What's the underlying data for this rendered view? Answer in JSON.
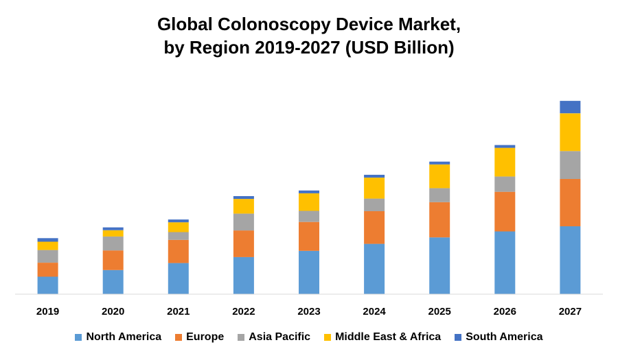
{
  "chart_data": {
    "type": "bar",
    "stacked": true,
    "title_line1": "Global Colonoscopy Device Market,",
    "title_line2": "by Region 2019-2027 (USD Billion)",
    "xlabel": "",
    "ylabel": "",
    "ylim": [
      0,
      100
    ],
    "grid": false,
    "legend_position": "bottom",
    "categories": [
      "2019",
      "2020",
      "2021",
      "2022",
      "2023",
      "2024",
      "2025",
      "2026",
      "2027"
    ],
    "series": [
      {
        "name": "North America",
        "color": "#5B9BD5",
        "values": [
          9.3,
          12.8,
          16.5,
          19.7,
          23.0,
          26.7,
          30.1,
          33.3,
          36.0
        ]
      },
      {
        "name": "Europe",
        "color": "#ED7D31",
        "values": [
          7.4,
          10.4,
          12.3,
          14.1,
          15.3,
          17.3,
          18.7,
          21.0,
          25.1
        ]
      },
      {
        "name": "Asia Pacific",
        "color": "#A5A5A5",
        "values": [
          6.7,
          7.4,
          4.1,
          8.9,
          5.9,
          6.7,
          7.4,
          8.1,
          14.8
        ]
      },
      {
        "name": "Middle East & Africa",
        "color": "#FFC000",
        "values": [
          4.4,
          3.3,
          5.2,
          7.8,
          9.3,
          11.1,
          12.6,
          15.2,
          20.0
        ]
      },
      {
        "name": "South America",
        "color": "#4472C4",
        "values": [
          1.9,
          1.5,
          1.5,
          1.5,
          1.5,
          1.5,
          1.5,
          1.5,
          6.6
        ]
      }
    ]
  }
}
